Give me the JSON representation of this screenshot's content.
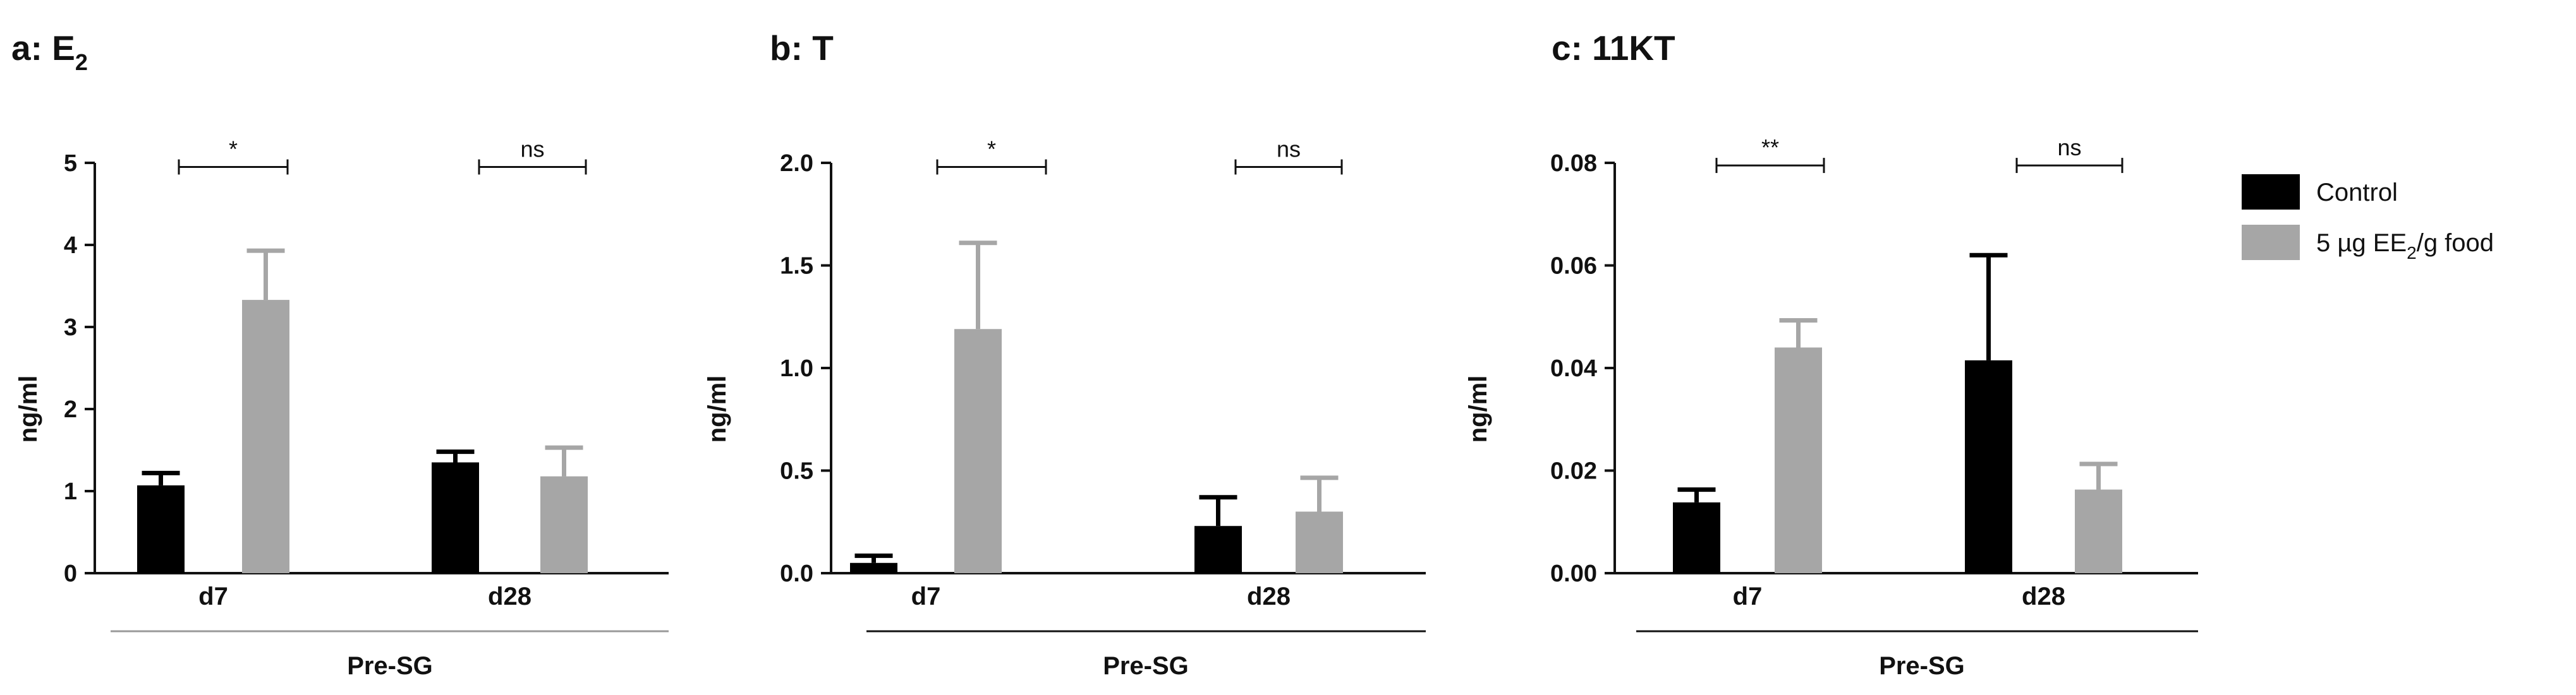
{
  "chart_data": [
    {
      "type": "bar",
      "panel": "a",
      "title_prefix": "a: E",
      "title_sub": "2",
      "ylabel": "ng/ml",
      "ylim": [
        0,
        5
      ],
      "yticks": [
        "0",
        "1",
        "2",
        "3",
        "4",
        "5"
      ],
      "ytick_values": [
        0,
        1,
        2,
        3,
        4,
        5
      ],
      "categories": [
        "d7",
        "d28"
      ],
      "group_label": "Pre-SG",
      "series": [
        {
          "name": "Control",
          "color": "#000000",
          "values": [
            1.07,
            1.35
          ],
          "errors": [
            0.15,
            0.13
          ]
        },
        {
          "name": "5 µg EE2/g food",
          "color": "#a6a6a6",
          "values": [
            3.33,
            1.18
          ],
          "errors": [
            0.6,
            0.35
          ]
        }
      ],
      "significance": [
        "*",
        "ns"
      ],
      "sig_level": 4.95
    },
    {
      "type": "bar",
      "panel": "b",
      "title_prefix": "b: T",
      "title_sub": "",
      "ylabel": "ng/ml",
      "ylim": [
        0,
        2
      ],
      "yticks": [
        "0.0",
        "0.5",
        "1.0",
        "1.5",
        "2.0"
      ],
      "ytick_values": [
        0,
        0.5,
        1,
        1.5,
        2
      ],
      "categories": [
        "d7",
        "d28"
      ],
      "group_label": "Pre-SG",
      "series": [
        {
          "name": "Control",
          "color": "#000000",
          "values": [
            0.05,
            0.23
          ],
          "errors": [
            0.035,
            0.14
          ]
        },
        {
          "name": "5 µg EE2/g food",
          "color": "#a6a6a6",
          "values": [
            1.19,
            0.3
          ],
          "errors": [
            0.42,
            0.165
          ]
        }
      ],
      "significance": [
        "*",
        "ns"
      ],
      "sig_level": 1.98
    },
    {
      "type": "bar",
      "panel": "c",
      "title_prefix": "c: 11KT",
      "title_sub": "",
      "ylabel": "ng/ml",
      "ylim": [
        0,
        0.08
      ],
      "yticks": [
        "0.00",
        "0.02",
        "0.04",
        "0.06",
        "0.08"
      ],
      "ytick_values": [
        0,
        0.02,
        0.04,
        0.06,
        0.08
      ],
      "categories": [
        "d7",
        "d28"
      ],
      "group_label": "Pre-SG",
      "series": [
        {
          "name": "Control",
          "color": "#000000",
          "values": [
            0.0138,
            0.0415
          ],
          "errors": [
            0.0025,
            0.0205
          ]
        },
        {
          "name": "5 µg EE2/g food",
          "color": "#a6a6a6",
          "values": [
            0.044,
            0.0163
          ],
          "errors": [
            0.0053,
            0.005
          ]
        }
      ],
      "significance": [
        "**",
        "ns"
      ],
      "sig_level": 0.0795
    }
  ],
  "legend": {
    "position": "right",
    "items": [
      {
        "label": "Control",
        "color": "#000000"
      },
      {
        "label_prefix": "5 µg EE",
        "label_sub": "2",
        "label_suffix": "/g food",
        "color": "#a6a6a6"
      }
    ]
  }
}
